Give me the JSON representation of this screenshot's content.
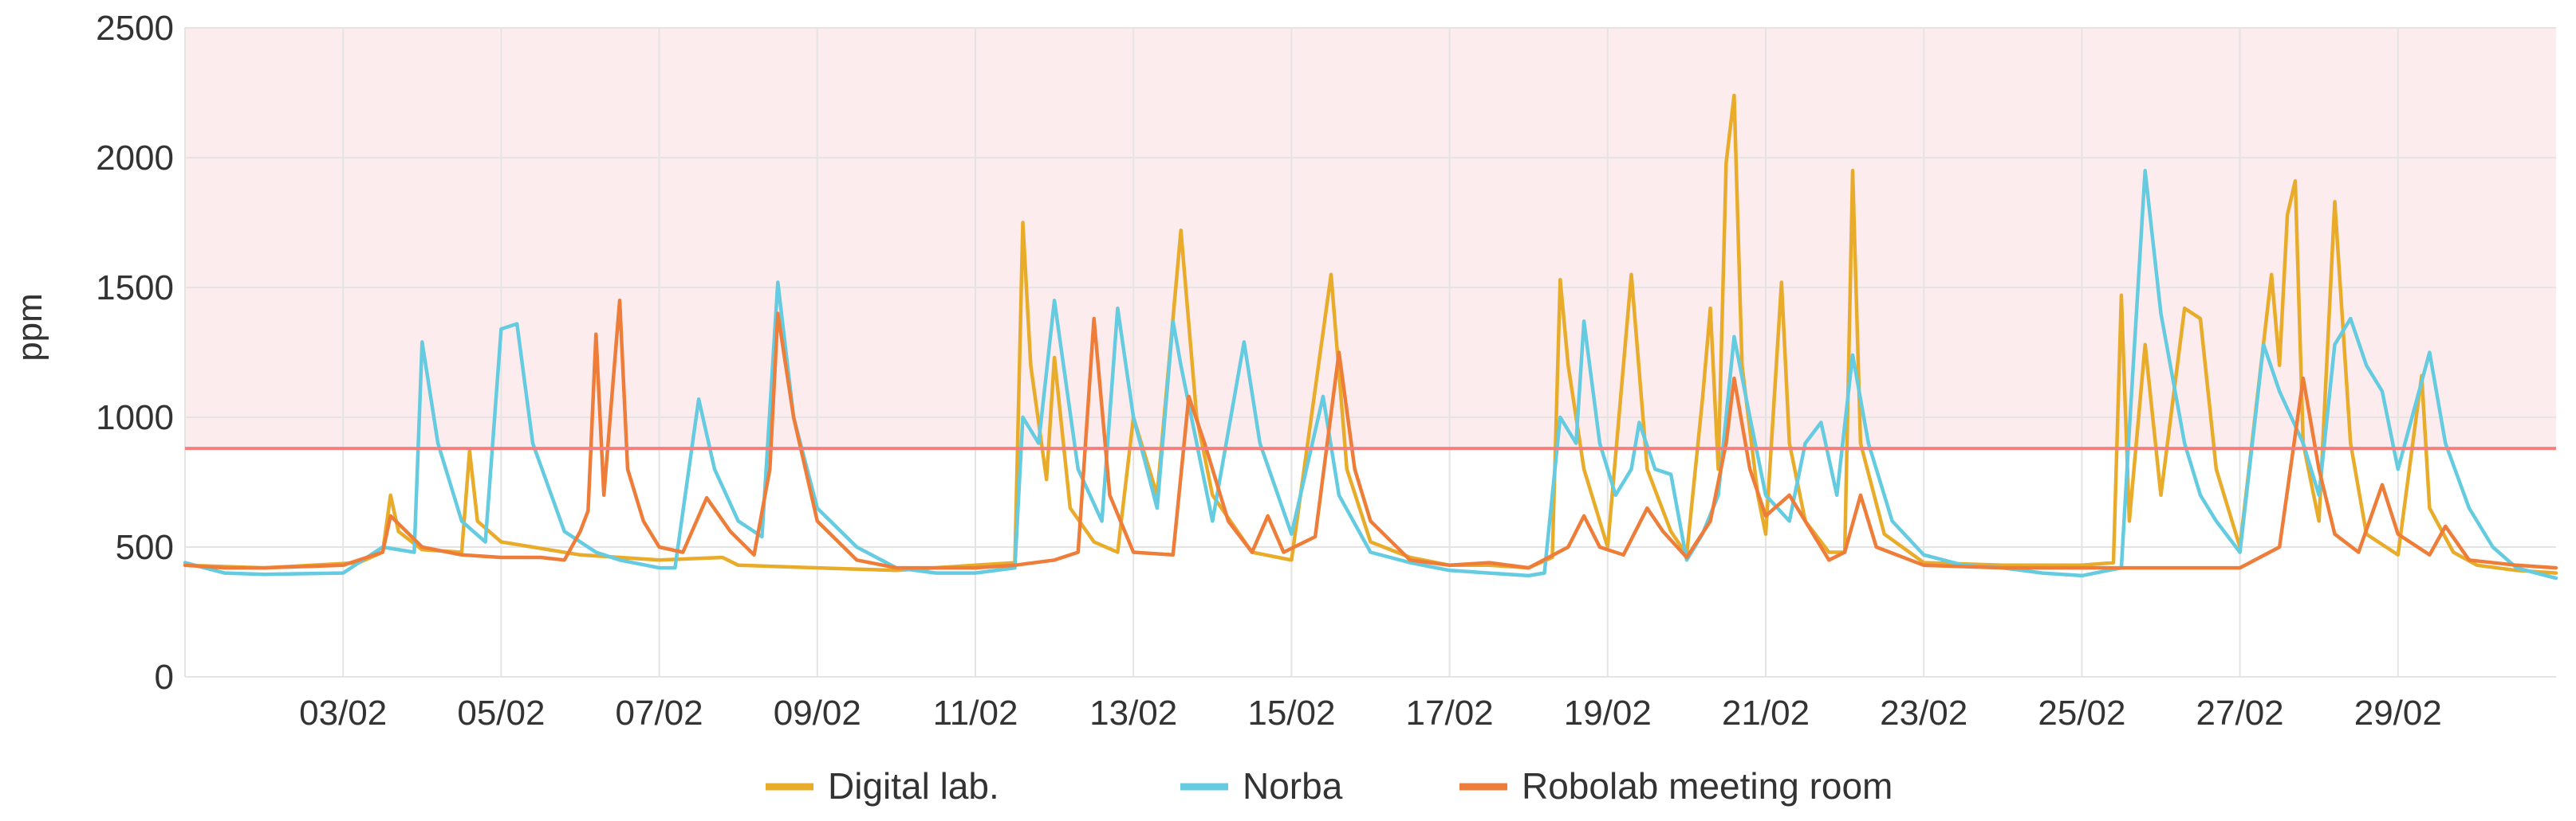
{
  "chart_data": {
    "type": "line",
    "title": "",
    "xlabel": "",
    "ylabel": "ppm",
    "ylim": [
      0,
      2500
    ],
    "yticks": [
      "0",
      "500",
      "1000",
      "1500",
      "2000",
      "2500"
    ],
    "xlim": [
      "01/02",
      "29/02"
    ],
    "xticks": [
      "03/02",
      "05/02",
      "07/02",
      "09/02",
      "11/02",
      "13/02",
      "15/02",
      "17/02",
      "19/02",
      "21/02",
      "23/02",
      "25/02",
      "27/02",
      "29/02"
    ],
    "grid": true,
    "legend_position": "bottom",
    "threshold": {
      "value": 880,
      "color": "#f47f7f",
      "shaded_band": [
        880,
        2500
      ],
      "band_color": "#fdecee"
    },
    "series": [
      {
        "name": "Digital lab.",
        "color": "#e8ac2a",
        "points": [
          [
            0.0,
            430
          ],
          [
            1.0,
            420
          ],
          [
            2.2,
            440
          ],
          [
            2.5,
            480
          ],
          [
            2.6,
            700
          ],
          [
            2.7,
            560
          ],
          [
            3.0,
            490
          ],
          [
            3.5,
            480
          ],
          [
            3.6,
            870
          ],
          [
            3.7,
            600
          ],
          [
            4.0,
            520
          ],
          [
            5.0,
            470
          ],
          [
            6.0,
            450
          ],
          [
            6.8,
            460
          ],
          [
            7.0,
            430
          ],
          [
            8.0,
            420
          ],
          [
            9.0,
            410
          ],
          [
            10.0,
            430
          ],
          [
            10.5,
            440
          ],
          [
            10.6,
            1750
          ],
          [
            10.7,
            1200
          ],
          [
            10.9,
            760
          ],
          [
            11.0,
            1230
          ],
          [
            11.2,
            650
          ],
          [
            11.5,
            520
          ],
          [
            11.8,
            480
          ],
          [
            12.0,
            1000
          ],
          [
            12.3,
            700
          ],
          [
            12.6,
            1720
          ],
          [
            12.8,
            1000
          ],
          [
            13.0,
            700
          ],
          [
            13.5,
            480
          ],
          [
            14.0,
            450
          ],
          [
            14.5,
            1550
          ],
          [
            14.7,
            800
          ],
          [
            15.0,
            520
          ],
          [
            15.5,
            460
          ],
          [
            16.0,
            430
          ],
          [
            16.5,
            430
          ],
          [
            17.0,
            420
          ],
          [
            17.3,
            460
          ],
          [
            17.4,
            1530
          ],
          [
            17.5,
            1200
          ],
          [
            17.7,
            800
          ],
          [
            18.0,
            500
          ],
          [
            18.3,
            1550
          ],
          [
            18.5,
            800
          ],
          [
            18.8,
            560
          ],
          [
            19.0,
            470
          ],
          [
            19.2,
            1070
          ],
          [
            19.3,
            1420
          ],
          [
            19.4,
            800
          ],
          [
            19.5,
            1980
          ],
          [
            19.6,
            2240
          ],
          [
            19.7,
            1200
          ],
          [
            19.9,
            700
          ],
          [
            20.0,
            550
          ],
          [
            20.2,
            1520
          ],
          [
            20.3,
            900
          ],
          [
            20.5,
            600
          ],
          [
            20.8,
            480
          ],
          [
            21.0,
            480
          ],
          [
            21.1,
            1950
          ],
          [
            21.2,
            900
          ],
          [
            21.5,
            550
          ],
          [
            22.0,
            440
          ],
          [
            23.0,
            430
          ],
          [
            24.0,
            430
          ],
          [
            24.4,
            440
          ],
          [
            24.5,
            1470
          ],
          [
            24.6,
            600
          ],
          [
            24.8,
            1280
          ],
          [
            25.0,
            700
          ],
          [
            25.3,
            1420
          ],
          [
            25.5,
            1380
          ],
          [
            25.7,
            800
          ],
          [
            26.0,
            500
          ],
          [
            26.4,
            1550
          ],
          [
            26.5,
            1200
          ],
          [
            26.6,
            1780
          ],
          [
            26.7,
            1910
          ],
          [
            26.8,
            900
          ],
          [
            27.0,
            600
          ],
          [
            27.2,
            1830
          ],
          [
            27.4,
            900
          ],
          [
            27.6,
            550
          ],
          [
            28.0,
            470
          ],
          [
            28.3,
            1160
          ],
          [
            28.4,
            650
          ],
          [
            28.7,
            480
          ],
          [
            29.0,
            430
          ],
          [
            29.5,
            410
          ],
          [
            30.0,
            400
          ]
        ]
      },
      {
        "name": "Norba",
        "color": "#64cbe0",
        "points": [
          [
            0.0,
            440
          ],
          [
            0.5,
            400
          ],
          [
            1.0,
            395
          ],
          [
            2.0,
            400
          ],
          [
            2.5,
            500
          ],
          [
            2.9,
            480
          ],
          [
            3.0,
            1290
          ],
          [
            3.2,
            900
          ],
          [
            3.5,
            600
          ],
          [
            3.8,
            520
          ],
          [
            4.0,
            1340
          ],
          [
            4.2,
            1360
          ],
          [
            4.4,
            900
          ],
          [
            4.8,
            560
          ],
          [
            5.2,
            480
          ],
          [
            5.5,
            450
          ],
          [
            6.0,
            420
          ],
          [
            6.2,
            420
          ],
          [
            6.5,
            1070
          ],
          [
            6.7,
            800
          ],
          [
            7.0,
            600
          ],
          [
            7.3,
            540
          ],
          [
            7.5,
            1520
          ],
          [
            7.7,
            1000
          ],
          [
            8.0,
            650
          ],
          [
            8.5,
            500
          ],
          [
            9.0,
            420
          ],
          [
            9.5,
            400
          ],
          [
            10.0,
            400
          ],
          [
            10.5,
            420
          ],
          [
            10.6,
            1000
          ],
          [
            10.8,
            900
          ],
          [
            11.0,
            1450
          ],
          [
            11.3,
            800
          ],
          [
            11.6,
            600
          ],
          [
            11.8,
            1420
          ],
          [
            12.0,
            1000
          ],
          [
            12.3,
            650
          ],
          [
            12.5,
            1370
          ],
          [
            12.6,
            1200
          ],
          [
            12.8,
            900
          ],
          [
            13.0,
            600
          ],
          [
            13.4,
            1290
          ],
          [
            13.6,
            900
          ],
          [
            14.0,
            550
          ],
          [
            14.4,
            1080
          ],
          [
            14.6,
            700
          ],
          [
            15.0,
            480
          ],
          [
            15.5,
            440
          ],
          [
            16.0,
            410
          ],
          [
            16.5,
            400
          ],
          [
            17.0,
            390
          ],
          [
            17.2,
            400
          ],
          [
            17.4,
            1000
          ],
          [
            17.6,
            900
          ],
          [
            17.7,
            1370
          ],
          [
            17.9,
            900
          ],
          [
            18.1,
            700
          ],
          [
            18.3,
            800
          ],
          [
            18.4,
            980
          ],
          [
            18.6,
            800
          ],
          [
            18.8,
            780
          ],
          [
            19.0,
            450
          ],
          [
            19.2,
            550
          ],
          [
            19.4,
            700
          ],
          [
            19.6,
            1310
          ],
          [
            19.8,
            1000
          ],
          [
            20.0,
            700
          ],
          [
            20.3,
            600
          ],
          [
            20.5,
            900
          ],
          [
            20.7,
            980
          ],
          [
            20.9,
            700
          ],
          [
            21.1,
            1240
          ],
          [
            21.3,
            900
          ],
          [
            21.6,
            600
          ],
          [
            22.0,
            470
          ],
          [
            22.5,
            430
          ],
          [
            23.0,
            420
          ],
          [
            23.5,
            400
          ],
          [
            24.0,
            390
          ],
          [
            24.5,
            420
          ],
          [
            24.6,
            950
          ],
          [
            24.8,
            1950
          ],
          [
            25.0,
            1400
          ],
          [
            25.3,
            900
          ],
          [
            25.5,
            700
          ],
          [
            25.7,
            600
          ],
          [
            26.0,
            480
          ],
          [
            26.3,
            1280
          ],
          [
            26.5,
            1100
          ],
          [
            26.8,
            900
          ],
          [
            27.0,
            700
          ],
          [
            27.2,
            1280
          ],
          [
            27.4,
            1380
          ],
          [
            27.6,
            1200
          ],
          [
            27.8,
            1100
          ],
          [
            28.0,
            800
          ],
          [
            28.4,
            1250
          ],
          [
            28.6,
            900
          ],
          [
            28.9,
            650
          ],
          [
            29.2,
            500
          ],
          [
            29.5,
            420
          ],
          [
            30.0,
            380
          ]
        ]
      },
      {
        "name": "Robolab meeting room",
        "color": "#ee7d3a",
        "points": [
          [
            0.0,
            430
          ],
          [
            0.5,
            420
          ],
          [
            1.0,
            420
          ],
          [
            2.0,
            430
          ],
          [
            2.5,
            480
          ],
          [
            2.6,
            620
          ],
          [
            2.8,
            560
          ],
          [
            3.0,
            500
          ],
          [
            3.5,
            470
          ],
          [
            4.0,
            460
          ],
          [
            4.5,
            460
          ],
          [
            4.8,
            450
          ],
          [
            5.0,
            560
          ],
          [
            5.1,
            640
          ],
          [
            5.2,
            1320
          ],
          [
            5.3,
            700
          ],
          [
            5.5,
            1450
          ],
          [
            5.6,
            800
          ],
          [
            5.8,
            600
          ],
          [
            6.0,
            500
          ],
          [
            6.3,
            480
          ],
          [
            6.6,
            690
          ],
          [
            6.9,
            560
          ],
          [
            7.2,
            470
          ],
          [
            7.4,
            800
          ],
          [
            7.5,
            1400
          ],
          [
            7.7,
            1000
          ],
          [
            8.0,
            600
          ],
          [
            8.5,
            450
          ],
          [
            9.0,
            420
          ],
          [
            10.0,
            420
          ],
          [
            10.5,
            430
          ],
          [
            11.0,
            450
          ],
          [
            11.3,
            480
          ],
          [
            11.5,
            1380
          ],
          [
            11.7,
            700
          ],
          [
            12.0,
            480
          ],
          [
            12.5,
            470
          ],
          [
            12.7,
            1080
          ],
          [
            12.9,
            900
          ],
          [
            13.2,
            600
          ],
          [
            13.5,
            480
          ],
          [
            13.7,
            620
          ],
          [
            13.9,
            480
          ],
          [
            14.3,
            540
          ],
          [
            14.6,
            1250
          ],
          [
            14.8,
            800
          ],
          [
            15.0,
            600
          ],
          [
            15.5,
            450
          ],
          [
            16.0,
            430
          ],
          [
            16.5,
            440
          ],
          [
            17.0,
            420
          ],
          [
            17.5,
            500
          ],
          [
            17.7,
            620
          ],
          [
            17.9,
            500
          ],
          [
            18.2,
            470
          ],
          [
            18.5,
            650
          ],
          [
            18.7,
            560
          ],
          [
            19.0,
            460
          ],
          [
            19.3,
            600
          ],
          [
            19.5,
            900
          ],
          [
            19.6,
            1150
          ],
          [
            19.8,
            800
          ],
          [
            20.0,
            620
          ],
          [
            20.3,
            700
          ],
          [
            20.5,
            600
          ],
          [
            20.8,
            450
          ],
          [
            21.0,
            480
          ],
          [
            21.2,
            700
          ],
          [
            21.4,
            500
          ],
          [
            22.0,
            430
          ],
          [
            23.0,
            420
          ],
          [
            24.0,
            420
          ],
          [
            25.0,
            420
          ],
          [
            26.0,
            420
          ],
          [
            26.5,
            500
          ],
          [
            26.8,
            1150
          ],
          [
            27.0,
            800
          ],
          [
            27.2,
            550
          ],
          [
            27.5,
            480
          ],
          [
            27.8,
            740
          ],
          [
            28.0,
            550
          ],
          [
            28.4,
            470
          ],
          [
            28.6,
            580
          ],
          [
            28.9,
            450
          ],
          [
            29.5,
            430
          ],
          [
            30.0,
            420
          ]
        ]
      }
    ]
  }
}
